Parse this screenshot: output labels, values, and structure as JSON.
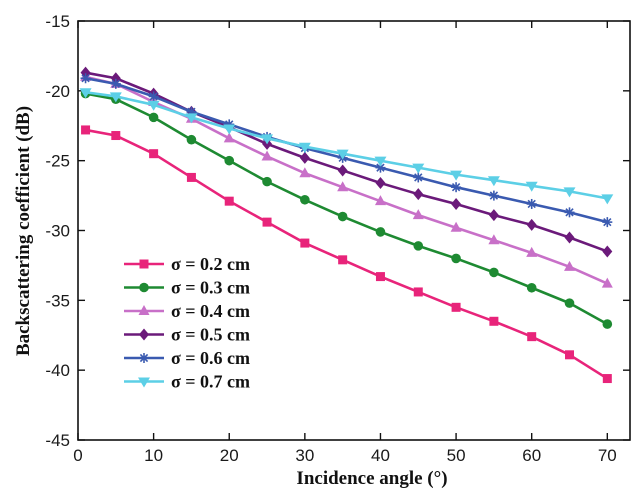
{
  "chart_data": {
    "type": "line",
    "xlabel": "Incidence angle (°)",
    "ylabel": "Backscattering coefficient (dB)",
    "xlim": [
      0,
      73
    ],
    "ylim": [
      -45,
      -15
    ],
    "xticks": [
      0,
      10,
      20,
      30,
      40,
      50,
      60,
      70
    ],
    "yticks": [
      -45,
      -40,
      -35,
      -30,
      -25,
      -20,
      -15
    ],
    "grid": false,
    "legend_position": "bottom-left",
    "x": [
      1,
      5,
      10,
      15,
      20,
      25,
      30,
      35,
      40,
      45,
      50,
      55,
      60,
      65,
      70
    ],
    "series": [
      {
        "name": "σ = 0.2 cm",
        "color": "#e8247a",
        "marker": "square",
        "values": [
          -22.8,
          -23.2,
          -24.5,
          -26.2,
          -27.9,
          -29.4,
          -30.9,
          -32.1,
          -33.3,
          -34.4,
          -35.5,
          -36.5,
          -37.6,
          -38.9,
          -40.6
        ]
      },
      {
        "name": "σ = 0.3 cm",
        "color": "#1e8a32",
        "marker": "circle",
        "values": [
          -20.2,
          -20.6,
          -21.9,
          -23.5,
          -25.0,
          -26.5,
          -27.8,
          -29.0,
          -30.1,
          -31.1,
          -32.0,
          -33.0,
          -34.1,
          -35.2,
          -36.7
        ]
      },
      {
        "name": "σ = 0.4 cm",
        "color": "#c870c8",
        "marker": "triangle",
        "values": [
          -19.0,
          -19.5,
          -20.8,
          -22.0,
          -23.4,
          -24.7,
          -25.9,
          -26.9,
          -27.9,
          -28.9,
          -29.8,
          -30.7,
          -31.6,
          -32.6,
          -33.8
        ]
      },
      {
        "name": "σ = 0.5 cm",
        "color": "#6b1a7a",
        "marker": "diamond",
        "values": [
          -18.7,
          -19.1,
          -20.2,
          -21.5,
          -22.6,
          -23.8,
          -24.8,
          -25.7,
          -26.6,
          -27.4,
          -28.1,
          -28.9,
          -29.6,
          -30.5,
          -31.5
        ]
      },
      {
        "name": "σ = 0.6 cm",
        "color": "#3a5ab0",
        "marker": "asterisk",
        "values": [
          -19.1,
          -19.5,
          -20.4,
          -21.5,
          -22.4,
          -23.3,
          -24.1,
          -24.8,
          -25.5,
          -26.2,
          -26.9,
          -27.5,
          -28.1,
          -28.7,
          -29.4
        ]
      },
      {
        "name": "σ = 0.7 cm",
        "color": "#5ccfe6",
        "marker": "triangle-down",
        "values": [
          -20.1,
          -20.4,
          -21.0,
          -21.9,
          -22.7,
          -23.4,
          -24.0,
          -24.5,
          -25.0,
          -25.5,
          -26.0,
          -26.4,
          -26.8,
          -27.2,
          -27.7
        ]
      }
    ]
  }
}
